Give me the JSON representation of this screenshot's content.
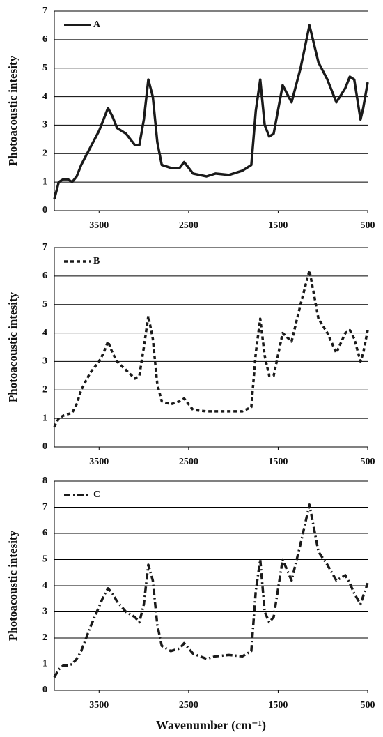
{
  "chart_data": [
    {
      "type": "line",
      "ylabel": "Photoacoustic intesity",
      "grid": true,
      "legend": "upper left",
      "xlim": [
        4000,
        500
      ],
      "xticks": [
        3500,
        2500,
        1500,
        500
      ],
      "ylim": [
        0,
        7
      ],
      "yticks": [
        0,
        1,
        2,
        3,
        4,
        5,
        6,
        7
      ],
      "x": [
        4000,
        3950,
        3900,
        3850,
        3800,
        3750,
        3700,
        3600,
        3500,
        3450,
        3400,
        3350,
        3300,
        3200,
        3100,
        3050,
        3000,
        2950,
        2900,
        2850,
        2800,
        2700,
        2600,
        2550,
        2500,
        2450,
        2300,
        2200,
        2050,
        1900,
        1800,
        1750,
        1700,
        1650,
        1600,
        1550,
        1450,
        1350,
        1250,
        1150,
        1050,
        950,
        850,
        750,
        700,
        650,
        580,
        550,
        500
      ],
      "series": [
        {
          "name": "A",
          "color": "#1a1a1a",
          "line_style": "solid",
          "values": [
            0.4,
            1.0,
            1.1,
            1.1,
            1.0,
            1.2,
            1.6,
            2.2,
            2.8,
            3.2,
            3.6,
            3.3,
            2.9,
            2.7,
            2.3,
            2.3,
            3.2,
            4.6,
            4.0,
            2.4,
            1.6,
            1.5,
            1.5,
            1.7,
            1.5,
            1.3,
            1.2,
            1.3,
            1.25,
            1.4,
            1.6,
            3.5,
            4.6,
            3.0,
            2.6,
            2.7,
            4.4,
            3.8,
            5.0,
            6.5,
            5.2,
            4.6,
            3.8,
            4.3,
            4.7,
            4.6,
            3.2,
            3.6,
            4.5
          ]
        }
      ]
    },
    {
      "type": "line",
      "ylabel": "Photoacoustic intesity",
      "grid": true,
      "legend": "upper left",
      "xlim": [
        4000,
        500
      ],
      "xticks": [
        3500,
        2500,
        1500,
        500
      ],
      "ylim": [
        0,
        7
      ],
      "yticks": [
        0,
        1,
        2,
        3,
        4,
        5,
        6,
        7
      ],
      "x": [
        4000,
        3950,
        3900,
        3850,
        3800,
        3750,
        3700,
        3600,
        3500,
        3450,
        3400,
        3350,
        3300,
        3200,
        3100,
        3050,
        3000,
        2950,
        2900,
        2850,
        2800,
        2700,
        2600,
        2550,
        2500,
        2450,
        2300,
        2200,
        2050,
        1900,
        1800,
        1750,
        1700,
        1650,
        1600,
        1550,
        1450,
        1350,
        1250,
        1150,
        1050,
        950,
        850,
        750,
        700,
        650,
        580,
        550,
        500
      ],
      "series": [
        {
          "name": "B",
          "color": "#1a1a1a",
          "line_style": "dotted",
          "values": [
            0.7,
            1.0,
            1.1,
            1.15,
            1.2,
            1.5,
            2.0,
            2.6,
            3.0,
            3.3,
            3.7,
            3.3,
            3.0,
            2.7,
            2.4,
            2.5,
            3.5,
            4.6,
            3.8,
            2.2,
            1.6,
            1.5,
            1.6,
            1.7,
            1.5,
            1.3,
            1.25,
            1.25,
            1.25,
            1.25,
            1.4,
            3.3,
            4.5,
            3.2,
            2.5,
            2.5,
            4.0,
            3.7,
            5.0,
            6.2,
            4.5,
            4.0,
            3.3,
            4.0,
            4.1,
            3.8,
            3.0,
            3.3,
            4.1
          ]
        }
      ]
    },
    {
      "type": "line",
      "ylabel": "Photoacoustic intesity",
      "xlabel": "Wavenumber (cm⁻¹)",
      "grid": true,
      "legend": "upper left",
      "xlim": [
        4000,
        500
      ],
      "xticks": [
        3500,
        2500,
        1500,
        500
      ],
      "ylim": [
        0,
        8
      ],
      "yticks": [
        0,
        1,
        2,
        3,
        4,
        5,
        6,
        7,
        8
      ],
      "x": [
        4000,
        3950,
        3900,
        3850,
        3800,
        3750,
        3700,
        3600,
        3500,
        3450,
        3400,
        3350,
        3300,
        3200,
        3100,
        3050,
        3000,
        2950,
        2900,
        2850,
        2800,
        2700,
        2600,
        2550,
        2500,
        2450,
        2300,
        2200,
        2050,
        1900,
        1800,
        1750,
        1700,
        1650,
        1600,
        1550,
        1450,
        1350,
        1250,
        1150,
        1050,
        950,
        850,
        750,
        700,
        650,
        580,
        550,
        500
      ],
      "series": [
        {
          "name": "C",
          "color": "#1a1a1a",
          "line_style": "dashdot",
          "values": [
            0.5,
            0.8,
            0.95,
            0.95,
            1.0,
            1.2,
            1.5,
            2.4,
            3.2,
            3.6,
            3.9,
            3.7,
            3.4,
            3.0,
            2.8,
            2.6,
            3.3,
            4.8,
            4.2,
            2.5,
            1.7,
            1.5,
            1.6,
            1.8,
            1.6,
            1.4,
            1.2,
            1.3,
            1.35,
            1.3,
            1.5,
            3.8,
            5.0,
            3.0,
            2.6,
            2.8,
            5.0,
            4.2,
            5.6,
            7.1,
            5.3,
            4.8,
            4.2,
            4.4,
            4.1,
            3.7,
            3.3,
            3.6,
            4.1
          ]
        }
      ]
    }
  ]
}
